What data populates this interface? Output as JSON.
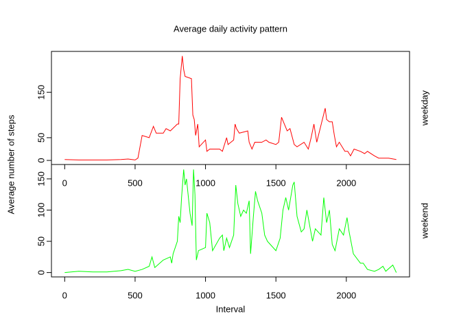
{
  "chart_data": [
    {
      "type": "line",
      "title": "Average daily activity pattern",
      "ylabel": "Average number of steps",
      "panel_label": "weekday",
      "xlim": [
        -94,
        2449
      ],
      "ylim": [
        -9,
        240
      ],
      "xticks": [
        0,
        500,
        1000,
        1500,
        2000
      ],
      "yticks": [
        0,
        50,
        150
      ],
      "x": [
        0,
        100,
        200,
        300,
        400,
        450,
        500,
        520,
        550,
        600,
        630,
        650,
        700,
        720,
        750,
        800,
        810,
        820,
        835,
        845,
        855,
        900,
        910,
        920,
        930,
        945,
        955,
        1000,
        1010,
        1030,
        1100,
        1120,
        1140,
        1150,
        1160,
        1200,
        1210,
        1220,
        1240,
        1300,
        1310,
        1330,
        1350,
        1400,
        1430,
        1450,
        1500,
        1520,
        1540,
        1560,
        1580,
        1600,
        1630,
        1650,
        1700,
        1730,
        1750,
        1770,
        1790,
        1810,
        1830,
        1850,
        1860,
        1880,
        1900,
        1915,
        1930,
        1950,
        1990,
        2010,
        2030,
        2055,
        2100,
        2130,
        2150,
        2200,
        2230,
        2300,
        2355
      ],
      "series": [
        {
          "name": "weekday",
          "color": "#FF0000",
          "values": [
            2,
            1,
            1,
            1,
            2,
            3,
            1,
            5,
            55,
            50,
            75,
            60,
            60,
            70,
            65,
            80,
            80,
            180,
            230,
            200,
            185,
            180,
            100,
            90,
            55,
            80,
            30,
            45,
            20,
            25,
            25,
            20,
            40,
            50,
            35,
            45,
            80,
            70,
            60,
            65,
            40,
            25,
            40,
            40,
            45,
            40,
            35,
            40,
            95,
            80,
            65,
            70,
            35,
            30,
            40,
            25,
            50,
            80,
            40,
            65,
            90,
            115,
            90,
            85,
            85,
            55,
            30,
            40,
            20,
            20,
            10,
            25,
            20,
            15,
            20,
            10,
            5,
            5,
            2
          ]
        }
      ]
    },
    {
      "type": "line",
      "xlabel": "Interval",
      "panel_label": "weekend",
      "xlim": [
        -94,
        2449
      ],
      "ylim": [
        -7,
        173
      ],
      "xticks": [
        0,
        500,
        1000,
        1500,
        2000
      ],
      "yticks": [
        0,
        50,
        100,
        150
      ],
      "x": [
        0,
        100,
        200,
        300,
        400,
        450,
        500,
        550,
        600,
        620,
        640,
        700,
        750,
        760,
        770,
        800,
        810,
        820,
        830,
        845,
        855,
        865,
        890,
        905,
        915,
        925,
        935,
        950,
        1000,
        1010,
        1030,
        1050,
        1100,
        1120,
        1130,
        1150,
        1170,
        1200,
        1215,
        1230,
        1250,
        1270,
        1290,
        1310,
        1320,
        1340,
        1355,
        1370,
        1400,
        1420,
        1440,
        1460,
        1500,
        1530,
        1550,
        1570,
        1590,
        1620,
        1630,
        1650,
        1680,
        1700,
        1720,
        1740,
        1760,
        1780,
        1800,
        1820,
        1840,
        1860,
        1880,
        1900,
        1920,
        1950,
        1980,
        2005,
        2020,
        2050,
        2100,
        2120,
        2150,
        2200,
        2230,
        2260,
        2280,
        2330,
        2355
      ],
      "series": [
        {
          "name": "weekend",
          "color": "#00FF00",
          "values": [
            0,
            2,
            1,
            1,
            3,
            5,
            2,
            5,
            10,
            25,
            8,
            20,
            25,
            15,
            30,
            50,
            90,
            80,
            120,
            165,
            140,
            150,
            95,
            75,
            165,
            125,
            20,
            35,
            40,
            95,
            80,
            35,
            55,
            60,
            35,
            55,
            40,
            60,
            140,
            110,
            90,
            100,
            95,
            115,
            30,
            90,
            130,
            115,
            95,
            60,
            50,
            45,
            35,
            55,
            100,
            120,
            100,
            140,
            145,
            90,
            65,
            70,
            100,
            75,
            50,
            70,
            65,
            60,
            120,
            80,
            100,
            45,
            35,
            70,
            60,
            88,
            65,
            30,
            15,
            15,
            5,
            2,
            5,
            10,
            2,
            12,
            0
          ]
        }
      ]
    }
  ]
}
